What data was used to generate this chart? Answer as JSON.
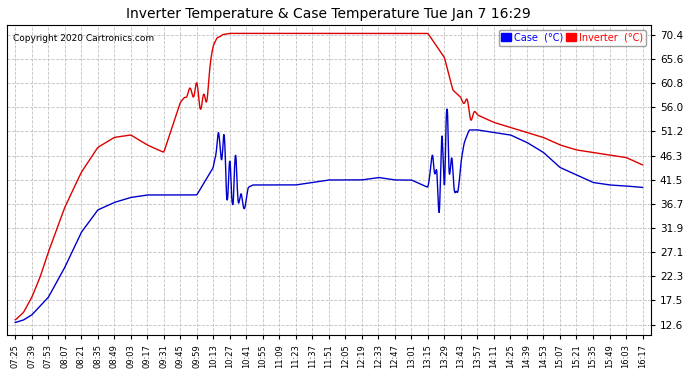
{
  "title": "Inverter Temperature & Case Temperature Tue Jan 7 16:29",
  "copyright": "Copyright 2020 Cartronics.com",
  "background_color": "#ffffff",
  "plot_bg_color": "#ffffff",
  "grid_color": "#bbbbbb",
  "yticks": [
    12.6,
    17.5,
    22.3,
    27.1,
    31.9,
    36.7,
    41.5,
    46.3,
    51.2,
    56.0,
    60.8,
    65.6,
    70.4
  ],
  "ylim": [
    10.5,
    72.5
  ],
  "legend": {
    "case_label": "Case  (°C)",
    "case_color": "#0000ff",
    "inverter_label": "Inverter  (°C)",
    "inverter_color": "#ff0000"
  },
  "xtick_labels": [
    "07:25",
    "07:39",
    "07:53",
    "08:07",
    "08:21",
    "08:35",
    "08:49",
    "09:03",
    "09:17",
    "09:31",
    "09:45",
    "09:59",
    "10:13",
    "10:27",
    "10:41",
    "10:55",
    "11:09",
    "11:23",
    "11:37",
    "11:51",
    "12:05",
    "12:19",
    "12:33",
    "12:47",
    "13:01",
    "13:15",
    "13:29",
    "13:43",
    "13:57",
    "14:11",
    "14:25",
    "14:39",
    "14:53",
    "15:07",
    "15:21",
    "15:35",
    "15:49",
    "16:03",
    "16:17"
  ],
  "case_keypoints_x": [
    0,
    0.5,
    1,
    2,
    3,
    4,
    5,
    6,
    7,
    8,
    9,
    10,
    11,
    12,
    12.3,
    12.7,
    13.0,
    13.3,
    13.6,
    13.9,
    14.0,
    14.1,
    14.4,
    15,
    16,
    17,
    18,
    19,
    20,
    21,
    22,
    23,
    24,
    25,
    25.3,
    25.6,
    25.9,
    26.2,
    26.5,
    26.8,
    27.0,
    27.2,
    27.5,
    28,
    29,
    30,
    31,
    32,
    33,
    34,
    35,
    36,
    37,
    38
  ],
  "case_keypoints_y": [
    13.0,
    13.5,
    14.5,
    18,
    24,
    31,
    35.5,
    37,
    38,
    38.5,
    38.5,
    38.5,
    38.5,
    44,
    50,
    46,
    38.5,
    43,
    38,
    36,
    37.5,
    40,
    40.5,
    40.5,
    40.5,
    40.5,
    41,
    41.5,
    41.5,
    41.5,
    42,
    41.5,
    41.5,
    40,
    47,
    38,
    46,
    50,
    42,
    38,
    45,
    49,
    51.5,
    51.5,
    51,
    50.5,
    49,
    47,
    44,
    42.5,
    41,
    40.5,
    40.3,
    40
  ],
  "inverter_keypoints_x": [
    0,
    0.5,
    1,
    1.5,
    2,
    3,
    4,
    5,
    6,
    7,
    8,
    9,
    10,
    10.5,
    11,
    11.3,
    11.6,
    12,
    12.5,
    13,
    13.1,
    13.5,
    14,
    15,
    16,
    17,
    18,
    19,
    20,
    21,
    22,
    23,
    24,
    25,
    26,
    26.5,
    27,
    27.3,
    27.6,
    28,
    29,
    30,
    31,
    32,
    33,
    34,
    35,
    36,
    37,
    38
  ],
  "inverter_keypoints_y": [
    13.5,
    15,
    18,
    22,
    27,
    36,
    43,
    48,
    50,
    50.5,
    48.5,
    47,
    57,
    59,
    59.5,
    56.5,
    58,
    69,
    70.5,
    70.8,
    70.8,
    70.8,
    70.8,
    70.8,
    70.8,
    70.8,
    70.8,
    70.8,
    70.8,
    70.8,
    70.8,
    70.8,
    70.8,
    70.8,
    66,
    59.5,
    58,
    56.5,
    55,
    54.5,
    53,
    52,
    51,
    50,
    48.5,
    47.5,
    47,
    46.5,
    46,
    44.5
  ]
}
